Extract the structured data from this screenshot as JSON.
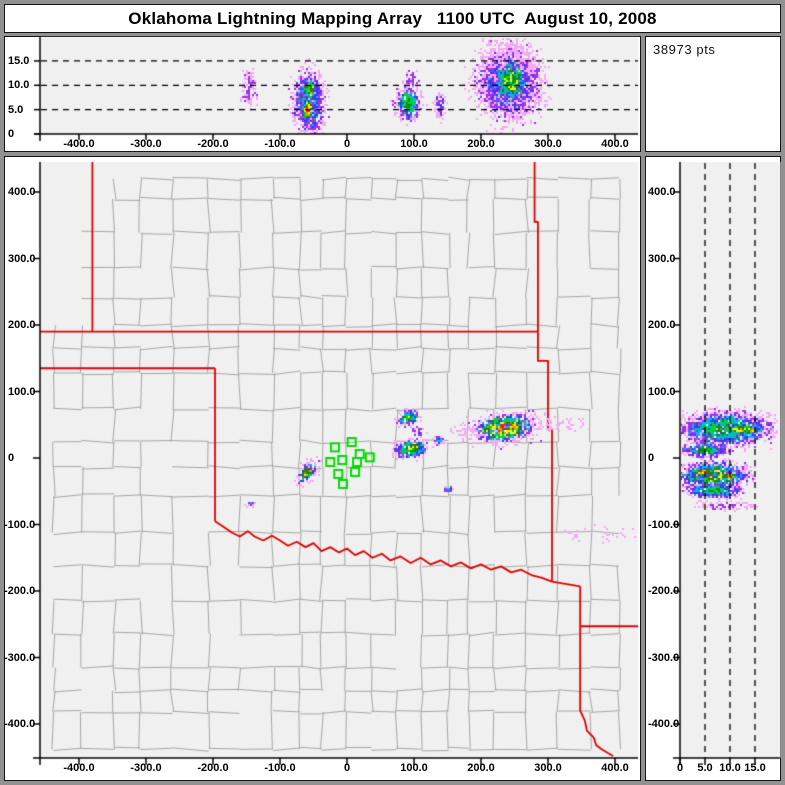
{
  "title": "Oklahoma Lightning Mapping Array   1100 UTC  August 10, 2008",
  "points_label": "38973 pts",
  "colors": {
    "frame": "#919191",
    "window_bg": "#ffffff",
    "plot_bg": "#f0f0f0",
    "axis": "#000000",
    "guide_dash": "#000000",
    "county_line": "#a6a6a6",
    "state_border": "#e00000",
    "station": "#00dd00",
    "palette": [
      "#f5a9f5",
      "#9933ee",
      "#3a3af0",
      "#00b8f0",
      "#00d232",
      "#0f9000",
      "#f5f500",
      "#ff9500",
      "#f52000"
    ]
  },
  "chart_data": {
    "type": "heatmap",
    "title": "Oklahoma Lightning Mapping Array   1100 UTC  August 10, 2008",
    "points_total": "38973 pts",
    "axis_ranges": {
      "east_west_km": [
        -458,
        434
      ],
      "north_south_km": [
        -446,
        445
      ],
      "altitude_km": [
        0,
        20
      ]
    },
    "x_ticks": [
      {
        "v": -400,
        "label": "-400.0"
      },
      {
        "v": -300,
        "label": "-300.0"
      },
      {
        "v": -200,
        "label": "-200.0"
      },
      {
        "v": -100,
        "label": "-100.0"
      },
      {
        "v": 0,
        "label": "0"
      },
      {
        "v": 100,
        "label": "100.0"
      },
      {
        "v": 200,
        "label": "200.0"
      },
      {
        "v": 300,
        "label": "300.0"
      },
      {
        "v": 400,
        "label": "400.0"
      }
    ],
    "panels": {
      "top": {
        "name": "altitude vs east-west distance",
        "y_ticks": [
          {
            "v": 15,
            "label": "15.0"
          },
          {
            "v": 10,
            "label": "10.0"
          },
          {
            "v": 5,
            "label": "5.0"
          },
          {
            "v": 0,
            "label": "0"
          }
        ],
        "guides_alt_km": [
          5,
          10,
          15
        ],
        "blobs": [
          {
            "x": -147,
            "y": 9.5,
            "rx": 10,
            "ry": 3.2,
            "rot": 0,
            "level": 1,
            "fringe": 1.6,
            "density": 0.6
          },
          {
            "x": -58,
            "y": 6.5,
            "rx": 22,
            "ry": 6.3,
            "rot": 0,
            "level": 4,
            "fringe": 1.5
          },
          {
            "x": -57,
            "y": 9.3,
            "rx": 10,
            "ry": 2.7,
            "rot": 0,
            "level": 7,
            "fringe": 1.15
          },
          {
            "x": -60,
            "y": 5.2,
            "rx": 10,
            "ry": 2.7,
            "rot": 0,
            "level": 8,
            "fringe": 1.15
          },
          {
            "x": 90,
            "y": 6.5,
            "rx": 17,
            "ry": 3.4,
            "rot": 0,
            "level": 5,
            "fringe": 1.6
          },
          {
            "x": 94,
            "y": 11,
            "rx": 9,
            "ry": 2.5,
            "rot": 0,
            "level": 1,
            "fringe": 1.5,
            "density": 0.5
          },
          {
            "x": 138,
            "y": 6,
            "rx": 8,
            "ry": 2.2,
            "rot": 0,
            "level": 2,
            "fringe": 1.6,
            "density": 0.8
          },
          {
            "x": 240,
            "y": 10.5,
            "rx": 45,
            "ry": 6.8,
            "rot": 0,
            "level": 3,
            "fringe": 1.5
          },
          {
            "x": 243,
            "y": 11,
            "rx": 25,
            "ry": 4.6,
            "rot": 4,
            "level": 6,
            "fringe": 1.2
          },
          {
            "x": 238,
            "y": 16.5,
            "rx": 30,
            "ry": 3,
            "rot": 0,
            "level": 0,
            "fringe": 1.4,
            "density": 0.35
          }
        ]
      },
      "map": {
        "name": "plan view",
        "y_ticks": [
          {
            "v": 400,
            "label": "400.0"
          },
          {
            "v": 300,
            "label": "300.0"
          },
          {
            "v": 200,
            "label": "200.0"
          },
          {
            "v": 100,
            "label": "100.0"
          },
          {
            "v": 0,
            "label": "0"
          },
          {
            "v": -100,
            "label": "-100.0"
          },
          {
            "v": -200,
            "label": "-200.0"
          },
          {
            "v": -300,
            "label": "-300.0"
          },
          {
            "v": -400,
            "label": "-400.0"
          }
        ],
        "stations_km": [
          [
            -18,
            16
          ],
          [
            7,
            24
          ],
          [
            19,
            6
          ],
          [
            -25,
            -6
          ],
          [
            -7,
            -3
          ],
          [
            15,
            -6
          ],
          [
            34,
            1
          ],
          [
            -13,
            -24
          ],
          [
            12,
            -21
          ],
          [
            -6,
            -39
          ]
        ],
        "state_borders_km": [
          [
            [
              -458,
              190
            ],
            [
              285,
              190
            ]
          ],
          [
            [
              -380,
              445
            ],
            [
              -380,
              190
            ]
          ],
          [
            [
              -458,
              135
            ],
            [
              -197,
              135
            ]
          ],
          [
            [
              -197,
              135
            ],
            [
              -197,
              -95
            ]
          ],
          [
            [
              -197,
              -95
            ],
            [
              -185,
              -103
            ],
            [
              -172,
              -112
            ],
            [
              -160,
              -118
            ],
            [
              -148,
              -110
            ],
            [
              -138,
              -118
            ],
            [
              -125,
              -124
            ],
            [
              -112,
              -117
            ],
            [
              -100,
              -124
            ],
            [
              -88,
              -132
            ],
            [
              -75,
              -126
            ],
            [
              -62,
              -134
            ],
            [
              -50,
              -128
            ],
            [
              -38,
              -140
            ],
            [
              -25,
              -134
            ],
            [
              -12,
              -142
            ],
            [
              0,
              -136
            ],
            [
              12,
              -146
            ],
            [
              25,
              -140
            ],
            [
              38,
              -150
            ],
            [
              52,
              -144
            ],
            [
              65,
              -154
            ],
            [
              80,
              -148
            ],
            [
              95,
              -158
            ],
            [
              110,
              -150
            ],
            [
              125,
              -160
            ],
            [
              140,
              -154
            ],
            [
              155,
              -163
            ],
            [
              170,
              -157
            ],
            [
              185,
              -166
            ],
            [
              200,
              -160
            ],
            [
              215,
              -168
            ],
            [
              230,
              -163
            ],
            [
              245,
              -172
            ],
            [
              260,
              -168
            ],
            [
              275,
              -176
            ],
            [
              290,
              -180
            ],
            [
              306,
              -186
            ]
          ],
          [
            [
              280,
              445
            ],
            [
              280,
              355
            ],
            [
              285,
              355
            ],
            [
              285,
              190
            ]
          ],
          [
            [
              285,
              190
            ],
            [
              285,
              146
            ],
            [
              300,
              146
            ],
            [
              300,
              43
            ],
            [
              306,
              43
            ],
            [
              306,
              -186
            ]
          ],
          [
            [
              306,
              -186
            ],
            [
              348,
              -193
            ]
          ],
          [
            [
              348,
              -193
            ],
            [
              348,
              -380
            ],
            [
              355,
              -395
            ],
            [
              358,
              -410
            ],
            [
              368,
              -420
            ],
            [
              372,
              -432
            ],
            [
              380,
              -438
            ],
            [
              397,
              -448
            ]
          ],
          [
            [
              348,
              -253
            ],
            [
              436,
              -253
            ]
          ]
        ],
        "blobs": [
          {
            "x": -60,
            "y": -19,
            "rx": 16,
            "ry": 9,
            "rot": -52,
            "level": 8,
            "fringe": 2.0
          },
          {
            "x": -61,
            "y": -17,
            "rx": 7,
            "ry": 4,
            "rot": -52,
            "level": 8,
            "fringe": 1.05
          },
          {
            "x": -145,
            "y": -67,
            "rx": 5,
            "ry": 3.5,
            "rot": 0,
            "level": 3,
            "fringe": 2.2
          },
          {
            "x": 91,
            "y": 62,
            "rx": 15,
            "ry": 10,
            "rot": -15,
            "level": 6,
            "fringe": 1.6
          },
          {
            "x": 104,
            "y": 40,
            "rx": 9,
            "ry": 8,
            "rot": 0,
            "level": 2,
            "fringe": 1.5,
            "density": 0.55
          },
          {
            "x": 94,
            "y": 15,
            "rx": 25,
            "ry": 13,
            "rot": -8,
            "level": 6,
            "fringe": 1.5
          },
          {
            "x": 136,
            "y": 28,
            "rx": 8,
            "ry": 6,
            "rot": 0,
            "level": 3,
            "fringe": 1.5,
            "density": 0.8
          },
          {
            "x": 233,
            "y": 46,
            "rx": 42,
            "ry": 19,
            "rot": -6,
            "level": 8,
            "fringe": 1.8
          },
          {
            "x": 230,
            "y": 47,
            "rx": 12,
            "ry": 6,
            "rot": -6,
            "level": 8,
            "fringe": 1.05
          },
          {
            "x": 305,
            "y": 52,
            "rx": 50,
            "ry": 10,
            "rot": 0,
            "level": 0,
            "fringe": 1.3,
            "density": 0.3
          },
          {
            "x": 172,
            "y": 42,
            "rx": 20,
            "ry": 8,
            "rot": 0,
            "level": 0,
            "fringe": 1.3,
            "density": 0.35
          },
          {
            "x": 150,
            "y": -46,
            "rx": 6,
            "ry": 4,
            "rot": 0,
            "level": 3,
            "fringe": 1.8
          },
          {
            "x": 380,
            "y": -112,
            "rx": 55,
            "ry": 14,
            "rot": -5,
            "level": 0,
            "fringe": 1.1,
            "density": 0.14
          }
        ]
      },
      "right": {
        "name": "altitude vs north-south distance",
        "x_ticks": [
          {
            "v": 0,
            "label": "0"
          },
          {
            "v": 5,
            "label": "5.0"
          },
          {
            "v": 10,
            "label": "10.0"
          },
          {
            "v": 15,
            "label": "15.0"
          }
        ],
        "guides_alt_km": [
          5,
          10,
          15
        ],
        "blobs": [
          {
            "x": 9,
            "y": 45,
            "rx": 9,
            "ry": 25,
            "rot": 0,
            "level": 5,
            "fringe": 1.4
          },
          {
            "x": 12.5,
            "y": 44,
            "rx": 4.5,
            "ry": 8,
            "rot": 0,
            "level": 7,
            "fringe": 1.1
          },
          {
            "x": 5,
            "y": 13,
            "rx": 4.5,
            "ry": 11,
            "rot": 0,
            "level": 5,
            "fringe": 1.35
          },
          {
            "x": 6.5,
            "y": -25,
            "rx": 7,
            "ry": 20,
            "rot": 0,
            "level": 6,
            "fringe": 1.35
          },
          {
            "x": 4.5,
            "y": -20,
            "rx": 3,
            "ry": 7,
            "rot": 0,
            "level": 8,
            "fringe": 1.1
          },
          {
            "x": 9.5,
            "y": -26,
            "rx": 3,
            "ry": 6,
            "rot": 0,
            "level": 8,
            "fringe": 1.1
          },
          {
            "x": 6.5,
            "y": -48,
            "rx": 5.5,
            "ry": 10,
            "rot": 0,
            "level": 5,
            "fringe": 1.3
          },
          {
            "x": 9,
            "y": -70,
            "rx": 5.5,
            "ry": 7,
            "rot": 0,
            "level": 1,
            "fringe": 1.4,
            "density": 0.5
          }
        ]
      }
    }
  }
}
